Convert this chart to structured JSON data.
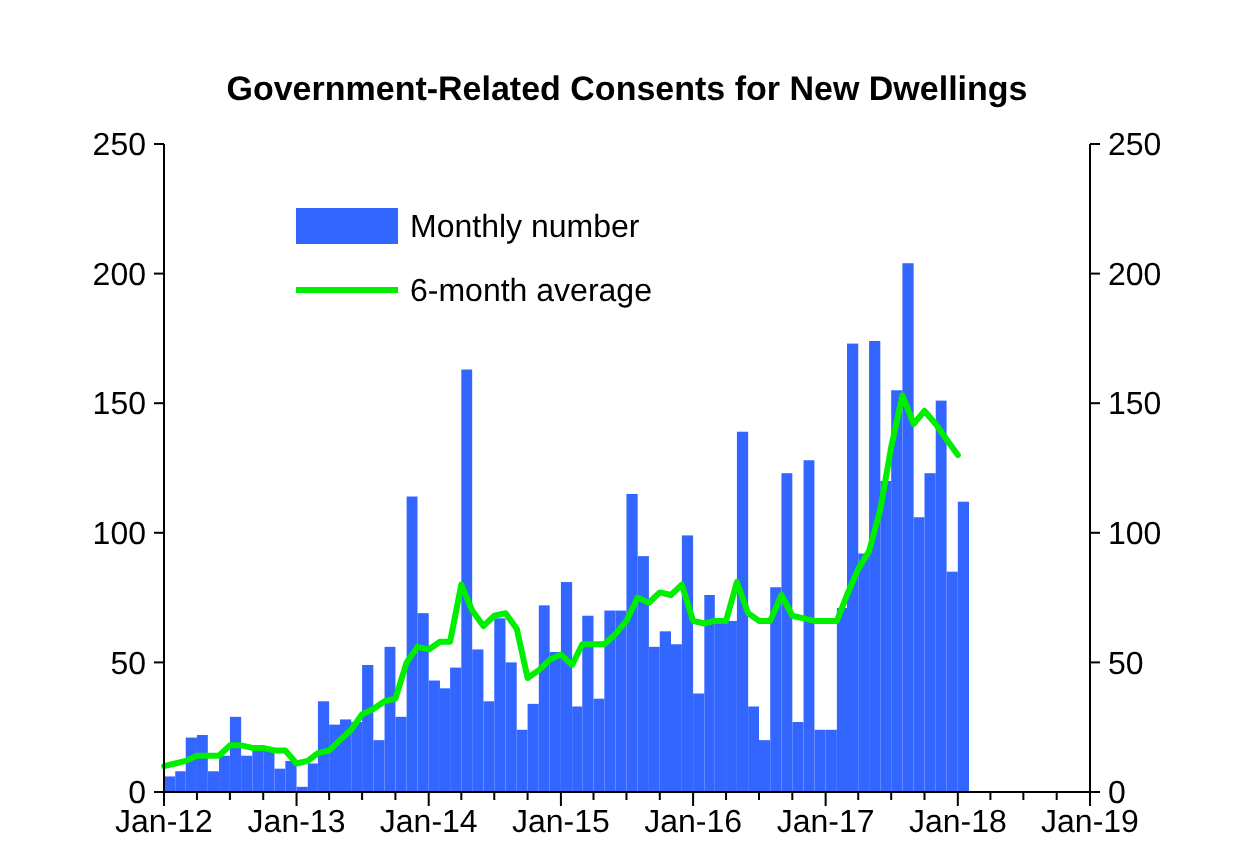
{
  "chart_data": {
    "type": "bar",
    "title": "Government-Related Consents for New Dwellings",
    "x": [
      "2012-01",
      "2012-02",
      "2012-03",
      "2012-04",
      "2012-05",
      "2012-06",
      "2012-07",
      "2012-08",
      "2012-09",
      "2012-10",
      "2012-11",
      "2012-12",
      "2013-01",
      "2013-02",
      "2013-03",
      "2013-04",
      "2013-05",
      "2013-06",
      "2013-07",
      "2013-08",
      "2013-09",
      "2013-10",
      "2013-11",
      "2013-12",
      "2014-01",
      "2014-02",
      "2014-03",
      "2014-04",
      "2014-05",
      "2014-06",
      "2014-07",
      "2014-08",
      "2014-09",
      "2014-10",
      "2014-11",
      "2014-12",
      "2015-01",
      "2015-02",
      "2015-03",
      "2015-04",
      "2015-05",
      "2015-06",
      "2015-07",
      "2015-08",
      "2015-09",
      "2015-10",
      "2015-11",
      "2015-12",
      "2016-01",
      "2016-02",
      "2016-03",
      "2016-04",
      "2016-05",
      "2016-06",
      "2016-07",
      "2016-08",
      "2016-09",
      "2016-10",
      "2016-11",
      "2016-12",
      "2017-01",
      "2017-02",
      "2017-03",
      "2017-04",
      "2017-05",
      "2017-06",
      "2017-07",
      "2017-08",
      "2017-09",
      "2017-10",
      "2017-11",
      "2017-12",
      "2018-01"
    ],
    "series": [
      {
        "name": "Monthly number",
        "color": "#3366ff",
        "values": [
          6,
          8,
          21,
          22,
          8,
          14,
          29,
          14,
          16,
          17,
          9,
          12,
          2,
          11,
          35,
          26,
          28,
          27,
          49,
          20,
          56,
          29,
          114,
          69,
          43,
          40,
          48,
          163,
          55,
          35,
          67,
          50,
          24,
          34,
          72,
          54,
          81,
          33,
          68,
          36,
          70,
          70,
          115,
          91,
          56,
          62,
          57,
          99,
          38,
          76,
          65,
          66,
          139,
          33,
          20,
          79,
          123,
          27,
          128,
          24,
          24,
          71,
          173,
          92,
          174,
          120,
          155,
          204,
          106,
          123,
          151,
          85,
          112
        ]
      },
      {
        "name": "6-month average",
        "type": "line",
        "color": "#00ee00",
        "values": [
          10,
          11,
          12,
          14,
          14,
          14,
          18,
          18,
          17,
          17,
          16,
          16,
          11,
          12,
          15,
          16,
          20,
          24,
          30,
          32,
          35,
          36,
          50,
          56,
          55,
          58,
          58,
          80,
          70,
          64,
          68,
          69,
          63,
          44,
          47,
          51,
          53,
          49,
          57,
          57,
          57,
          61,
          66,
          75,
          73,
          77,
          76,
          80,
          66,
          65,
          66,
          66,
          81,
          69,
          66,
          66,
          76,
          68,
          67,
          66,
          66,
          66,
          76,
          86,
          93,
          109,
          133,
          153,
          142,
          147,
          142,
          136,
          130
        ]
      }
    ],
    "xlim": [
      "2012-01",
      "2019-01"
    ],
    "xticks": [
      {
        "value": "2012-01",
        "label": "Jan-12"
      },
      {
        "value": "2012-04",
        "label": null
      },
      {
        "value": "2012-07",
        "label": null
      },
      {
        "value": "2012-10",
        "label": null
      },
      {
        "value": "2013-01",
        "label": "Jan-13"
      },
      {
        "value": "2013-04",
        "label": null
      },
      {
        "value": "2013-07",
        "label": null
      },
      {
        "value": "2013-10",
        "label": null
      },
      {
        "value": "2014-01",
        "label": "Jan-14"
      },
      {
        "value": "2014-04",
        "label": null
      },
      {
        "value": "2014-07",
        "label": null
      },
      {
        "value": "2014-10",
        "label": null
      },
      {
        "value": "2015-01",
        "label": "Jan-15"
      },
      {
        "value": "2015-04",
        "label": null
      },
      {
        "value": "2015-07",
        "label": null
      },
      {
        "value": "2015-10",
        "label": null
      },
      {
        "value": "2016-01",
        "label": "Jan-16"
      },
      {
        "value": "2016-04",
        "label": null
      },
      {
        "value": "2016-07",
        "label": null
      },
      {
        "value": "2016-10",
        "label": null
      },
      {
        "value": "2017-01",
        "label": "Jan-17"
      },
      {
        "value": "2017-04",
        "label": null
      },
      {
        "value": "2017-07",
        "label": null
      },
      {
        "value": "2017-10",
        "label": null
      },
      {
        "value": "2018-01",
        "label": "Jan-18"
      },
      {
        "value": "2018-04",
        "label": null
      },
      {
        "value": "2018-07",
        "label": null
      },
      {
        "value": "2018-10",
        "label": null
      },
      {
        "value": "2019-01",
        "label": "Jan-19"
      }
    ],
    "ylim": [
      0,
      250
    ],
    "yticks": [
      0,
      50,
      100,
      150,
      200,
      250
    ],
    "y2lim": [
      0,
      250
    ],
    "y2ticks": [
      0,
      50,
      100,
      150,
      200,
      250
    ],
    "legend": "top left",
    "grid": false
  }
}
